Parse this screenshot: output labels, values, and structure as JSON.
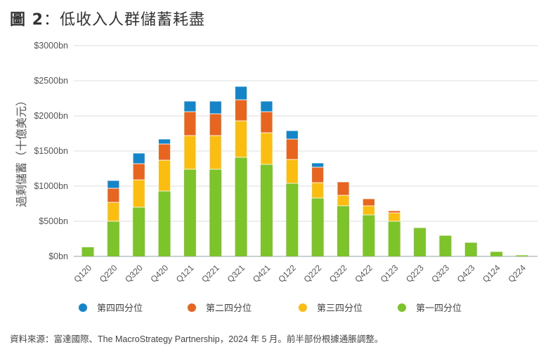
{
  "figure": {
    "title_prefix": "圖 2",
    "title_sep": "：",
    "title_text": "低收入人群儲蓄耗盡",
    "source": "資料來源：富達國際、The MacroStrategy Partnership，2024 年 5 月。前半部份根據通脹調整。"
  },
  "chart_data": {
    "type": "bar",
    "stacked": true,
    "title": "圖 2：低收入人群儲蓄耗盡",
    "xlabel": "",
    "ylabel": "過剩儲蓄（十億美元）",
    "ylim": [
      0,
      3000
    ],
    "yticks": [
      0,
      500,
      1000,
      1500,
      2000,
      2500,
      3000
    ],
    "ytick_labels": [
      "$0bn",
      "$500bn",
      "$1000bn",
      "$1500bn",
      "$2000bn",
      "$2500bn",
      "$3000bn"
    ],
    "grid": true,
    "legend_position": "bottom",
    "categories": [
      "Q120",
      "Q220",
      "Q320",
      "Q420",
      "Q121",
      "Q221",
      "Q321",
      "Q421",
      "Q122",
      "Q222",
      "Q322",
      "Q422",
      "Q123",
      "Q223",
      "Q323",
      "Q423",
      "Q124",
      "Q224"
    ],
    "series": [
      {
        "name": "第一四分位",
        "color": "#7dc42a",
        "values": [
          130,
          500,
          700,
          930,
          1240,
          1240,
          1410,
          1310,
          1040,
          830,
          720,
          590,
          500,
          405,
          295,
          195,
          65,
          15
        ]
      },
      {
        "name": "第三四分位",
        "color": "#fbbd10",
        "values": [
          0,
          270,
          390,
          440,
          480,
          480,
          520,
          450,
          340,
          220,
          150,
          130,
          120,
          0,
          0,
          0,
          0,
          0
        ]
      },
      {
        "name": "第二四分位",
        "color": "#e8651f",
        "values": [
          0,
          200,
          230,
          230,
          340,
          310,
          300,
          300,
          290,
          220,
          190,
          100,
          30,
          0,
          0,
          0,
          0,
          0
        ]
      },
      {
        "name": "第四四分位",
        "color": "#1385c8",
        "values": [
          0,
          110,
          150,
          70,
          150,
          180,
          190,
          150,
          120,
          60,
          0,
          0,
          0,
          0,
          0,
          0,
          0,
          0
        ]
      }
    ],
    "legend": [
      {
        "label": "第四四分位",
        "color": "#1385c8"
      },
      {
        "label": "第二四分位",
        "color": "#e8651f"
      },
      {
        "label": "第三四分位",
        "color": "#fbbd10"
      },
      {
        "label": "第一四分位",
        "color": "#7dc42a"
      }
    ]
  }
}
